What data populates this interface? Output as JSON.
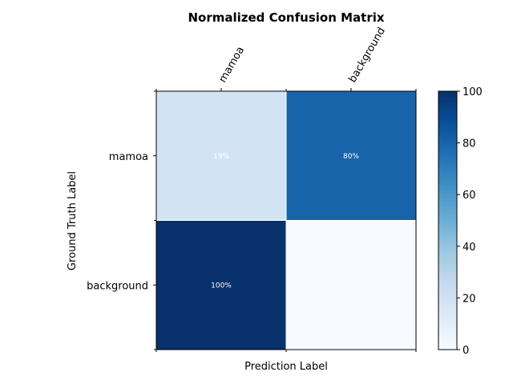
{
  "chart_data": {
    "type": "heatmap",
    "title": "Normalized Confusion Matrix",
    "xlabel": "Prediction Label",
    "ylabel": "Ground Truth Label",
    "x_categories": [
      "mamoa",
      "background"
    ],
    "y_categories": [
      "mamoa",
      "background"
    ],
    "values": [
      [
        19,
        80
      ],
      [
        100,
        0
      ]
    ],
    "cell_labels": [
      [
        "19%",
        "80%"
      ],
      [
        "100%",
        ""
      ]
    ],
    "colorbar": {
      "colormap": "Blues",
      "range": [
        0,
        100
      ],
      "ticks": [
        "0",
        "20",
        "40",
        "60",
        "80",
        "100"
      ]
    }
  }
}
